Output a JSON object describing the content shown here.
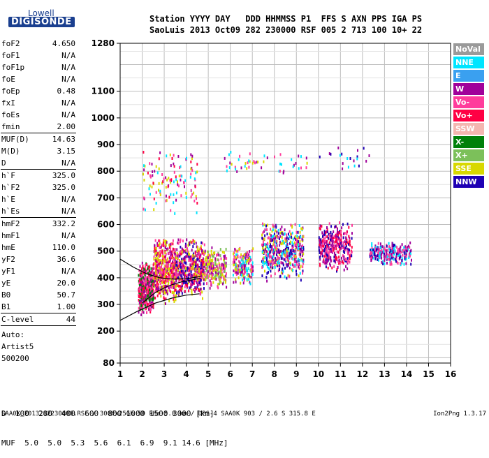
{
  "logo": {
    "line1": "Lowell",
    "line2": "DIGISONDE"
  },
  "header": {
    "line1": "Station YYYY DAY   DDD HHMMSS P1  FFS S AXN PPS IGA PS",
    "line2": "SaoLuis 2013 Oct09 282 230000 RSF 005 2 713 100 10+ 22"
  },
  "params": [
    {
      "label": "foF2",
      "value": "4.650"
    },
    {
      "label": "foF1",
      "value": "N/A"
    },
    {
      "label": "foF1p",
      "value": "N/A"
    },
    {
      "label": "foE",
      "value": "N/A"
    },
    {
      "label": "foEp",
      "value": "0.48"
    },
    {
      "label": "fxI",
      "value": "N/A"
    },
    {
      "label": "foEs",
      "value": "N/A"
    },
    {
      "label": "fmin",
      "value": "2.00"
    },
    {
      "sep": true
    },
    {
      "label": "MUF(D)",
      "value": "14.63"
    },
    {
      "label": "M(D)",
      "value": "3.15"
    },
    {
      "label": "D",
      "value": "N/A"
    },
    {
      "sep": true
    },
    {
      "label": "h`F",
      "value": "325.0"
    },
    {
      "label": "h`F2",
      "value": "325.0"
    },
    {
      "label": "h`E",
      "value": "N/A"
    },
    {
      "label": "h`Es",
      "value": "N/A"
    },
    {
      "sep": true
    },
    {
      "label": "hmF2",
      "value": "332.2"
    },
    {
      "label": "hmF1",
      "value": "N/A"
    },
    {
      "label": "hmE",
      "value": "110.0"
    },
    {
      "label": "yF2",
      "value": "36.6"
    },
    {
      "label": "yF1",
      "value": "N/A"
    },
    {
      "label": "yE",
      "value": "20.0"
    },
    {
      "label": "B0",
      "value": "50.7"
    },
    {
      "label": "B1",
      "value": "1.00"
    },
    {
      "sep": true
    },
    {
      "label": "C-level",
      "value": "44"
    },
    {
      "sep": true
    }
  ],
  "autoscaling": {
    "line1": "Auto:",
    "line2": "Artist5",
    "line3": "500200"
  },
  "legend": [
    {
      "label": "NoVal",
      "color": "#9a9a9a"
    },
    {
      "label": "NNE",
      "color": "#00e5ff"
    },
    {
      "label": "E",
      "color": "#3aa0f0"
    },
    {
      "label": "W",
      "color": "#a0009a"
    },
    {
      "label": "Vo-",
      "color": "#ff3c9c"
    },
    {
      "label": "Vo+",
      "color": "#ff0044"
    },
    {
      "label": "SSW",
      "color": "#f4b6b0"
    },
    {
      "label": "X-",
      "color": "#00800a"
    },
    {
      "label": "X+",
      "color": "#7cc05a"
    },
    {
      "label": "SSE",
      "color": "#d8d800"
    },
    {
      "label": "NNW",
      "color": "#1e00b4"
    }
  ],
  "muf_table": {
    "d_label": "D",
    "d_values": [
      "100",
      "200",
      "400",
      "600",
      "800",
      "1000",
      "1500",
      "3000"
    ],
    "d_unit": "[km]",
    "m_label": "MUF",
    "m_values": [
      "5.0",
      "5.0",
      "5.3",
      "5.6",
      "6.1",
      "6.9",
      "9.1",
      "14.6"
    ],
    "m_unit": "[MHz]"
  },
  "footer": {
    "left": "SAA0K_2013282230000.RSF / 300fx256h 50 kHz 5.0 km / DPS-4 SAA0K 903 / 2.6 S 315.8 E",
    "right": "Ion2Png 1.3.17"
  },
  "chart_data": {
    "type": "scatter",
    "xlim": [
      1,
      16
    ],
    "ylim": [
      80,
      1280
    ],
    "x_ticks": [
      1,
      2,
      3,
      4,
      5,
      6,
      7,
      8,
      9,
      10,
      11,
      12,
      13,
      14,
      15,
      16
    ],
    "y_ticks": [
      80,
      200,
      300,
      400,
      500,
      600,
      700,
      800,
      900,
      1000,
      1100,
      1280
    ],
    "grid": true,
    "clusters": [
      {
        "x": [
          1.8,
          2.5
        ],
        "y": [
          260,
          470
        ],
        "colors": [
          "#ff3c9c",
          "#ff0044",
          "#a0009a",
          "#00800a"
        ],
        "density": 450
      },
      {
        "x": [
          2.5,
          3.5
        ],
        "y": [
          300,
          560
        ],
        "colors": [
          "#ff3c9c",
          "#a0009a",
          "#ff0044",
          "#d8d800"
        ],
        "density": 500
      },
      {
        "x": [
          3.5,
          4.8
        ],
        "y": [
          320,
          560
        ],
        "colors": [
          "#ff3c9c",
          "#a0009a",
          "#ff0044",
          "#d8d800",
          "#1e00b4"
        ],
        "density": 500
      },
      {
        "x": [
          4.8,
          5.8
        ],
        "y": [
          360,
          520
        ],
        "colors": [
          "#ff3c9c",
          "#d8d800",
          "#a0009a",
          "#7cc05a"
        ],
        "density": 220
      },
      {
        "x": [
          6.1,
          7.0
        ],
        "y": [
          380,
          520
        ],
        "colors": [
          "#ff3c9c",
          "#a0009a",
          "#d8d800",
          "#00e5ff"
        ],
        "density": 200
      },
      {
        "x": [
          7.4,
          9.3
        ],
        "y": [
          390,
          620
        ],
        "colors": [
          "#ff3c9c",
          "#a0009a",
          "#d8d800",
          "#1e00b4",
          "#00e5ff"
        ],
        "density": 500
      },
      {
        "x": [
          10.0,
          11.5
        ],
        "y": [
          420,
          620
        ],
        "colors": [
          "#ff3c9c",
          "#a0009a",
          "#ff0044",
          "#1e00b4"
        ],
        "density": 330
      },
      {
        "x": [
          12.3,
          14.2
        ],
        "y": [
          450,
          540
        ],
        "colors": [
          "#ff3c9c",
          "#a0009a",
          "#1e00b4",
          "#00e5ff"
        ],
        "density": 260
      },
      {
        "x": [
          2.0,
          4.5
        ],
        "y": [
          640,
          900
        ],
        "colors": [
          "#ff3c9c",
          "#a0009a",
          "#d8d800",
          "#00e5ff",
          "#ff0044"
        ],
        "density": 120
      },
      {
        "x": [
          5.5,
          9.5
        ],
        "y": [
          780,
          890
        ],
        "colors": [
          "#d8d800",
          "#00e5ff",
          "#ff3c9c",
          "#a0009a"
        ],
        "density": 50
      },
      {
        "x": [
          10.0,
          12.5
        ],
        "y": [
          800,
          900
        ],
        "colors": [
          "#00e5ff",
          "#a0009a",
          "#1e00b4"
        ],
        "density": 20
      }
    ],
    "trace_lines": [
      {
        "points": [
          [
            1.0,
            240
          ],
          [
            1.8,
            275
          ],
          [
            2.6,
            305
          ],
          [
            3.4,
            325
          ],
          [
            4.0,
            335
          ],
          [
            4.6,
            340
          ]
        ]
      },
      {
        "points": [
          [
            1.0,
            470
          ],
          [
            1.6,
            440
          ],
          [
            2.2,
            415
          ],
          [
            2.8,
            400
          ],
          [
            3.4,
            395
          ],
          [
            4.0,
            396
          ],
          [
            4.65,
            405
          ]
        ]
      },
      {
        "points": [
          [
            2.0,
            305
          ],
          [
            2.6,
            345
          ],
          [
            3.2,
            370
          ],
          [
            3.8,
            385
          ],
          [
            4.65,
            398
          ]
        ]
      }
    ]
  }
}
